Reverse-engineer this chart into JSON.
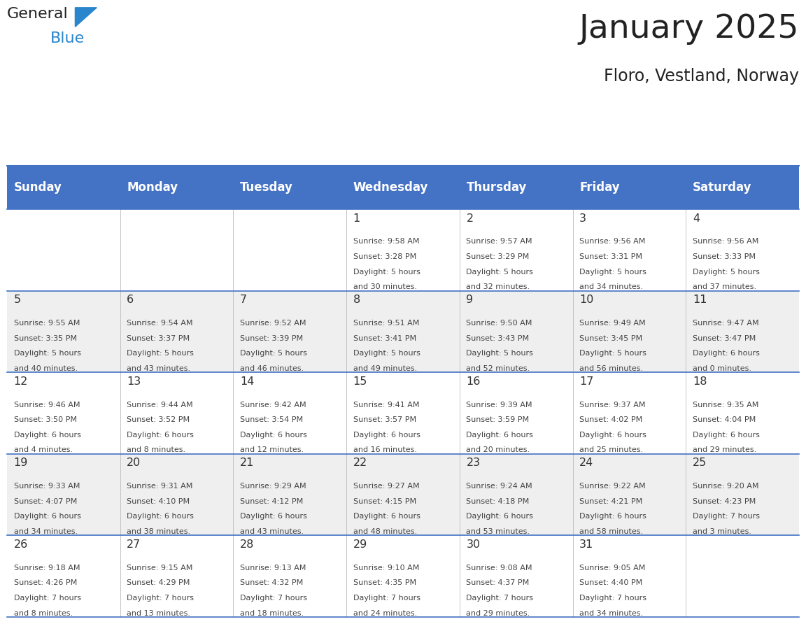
{
  "title": "January 2025",
  "subtitle": "Floro, Vestland, Norway",
  "days_of_week": [
    "Sunday",
    "Monday",
    "Tuesday",
    "Wednesday",
    "Thursday",
    "Friday",
    "Saturday"
  ],
  "header_bg": "#4472C4",
  "header_text": "#FFFFFF",
  "odd_row_bg": "#FFFFFF",
  "even_row_bg": "#EFEFEF",
  "line_color": "#4472C4",
  "day_number_color": "#333333",
  "cell_text_color": "#444444",
  "title_color": "#222222",
  "logo_text_color": "#222222",
  "logo_blue_color": "#2986CC",
  "calendar_data": [
    [
      null,
      null,
      null,
      {
        "day": 1,
        "sunrise": "9:58 AM",
        "sunset": "3:28 PM",
        "daylight": "5 hours\nand 30 minutes."
      },
      {
        "day": 2,
        "sunrise": "9:57 AM",
        "sunset": "3:29 PM",
        "daylight": "5 hours\nand 32 minutes."
      },
      {
        "day": 3,
        "sunrise": "9:56 AM",
        "sunset": "3:31 PM",
        "daylight": "5 hours\nand 34 minutes."
      },
      {
        "day": 4,
        "sunrise": "9:56 AM",
        "sunset": "3:33 PM",
        "daylight": "5 hours\nand 37 minutes."
      }
    ],
    [
      {
        "day": 5,
        "sunrise": "9:55 AM",
        "sunset": "3:35 PM",
        "daylight": "5 hours\nand 40 minutes."
      },
      {
        "day": 6,
        "sunrise": "9:54 AM",
        "sunset": "3:37 PM",
        "daylight": "5 hours\nand 43 minutes."
      },
      {
        "day": 7,
        "sunrise": "9:52 AM",
        "sunset": "3:39 PM",
        "daylight": "5 hours\nand 46 minutes."
      },
      {
        "day": 8,
        "sunrise": "9:51 AM",
        "sunset": "3:41 PM",
        "daylight": "5 hours\nand 49 minutes."
      },
      {
        "day": 9,
        "sunrise": "9:50 AM",
        "sunset": "3:43 PM",
        "daylight": "5 hours\nand 52 minutes."
      },
      {
        "day": 10,
        "sunrise": "9:49 AM",
        "sunset": "3:45 PM",
        "daylight": "5 hours\nand 56 minutes."
      },
      {
        "day": 11,
        "sunrise": "9:47 AM",
        "sunset": "3:47 PM",
        "daylight": "6 hours\nand 0 minutes."
      }
    ],
    [
      {
        "day": 12,
        "sunrise": "9:46 AM",
        "sunset": "3:50 PM",
        "daylight": "6 hours\nand 4 minutes."
      },
      {
        "day": 13,
        "sunrise": "9:44 AM",
        "sunset": "3:52 PM",
        "daylight": "6 hours\nand 8 minutes."
      },
      {
        "day": 14,
        "sunrise": "9:42 AM",
        "sunset": "3:54 PM",
        "daylight": "6 hours\nand 12 minutes."
      },
      {
        "day": 15,
        "sunrise": "9:41 AM",
        "sunset": "3:57 PM",
        "daylight": "6 hours\nand 16 minutes."
      },
      {
        "day": 16,
        "sunrise": "9:39 AM",
        "sunset": "3:59 PM",
        "daylight": "6 hours\nand 20 minutes."
      },
      {
        "day": 17,
        "sunrise": "9:37 AM",
        "sunset": "4:02 PM",
        "daylight": "6 hours\nand 25 minutes."
      },
      {
        "day": 18,
        "sunrise": "9:35 AM",
        "sunset": "4:04 PM",
        "daylight": "6 hours\nand 29 minutes."
      }
    ],
    [
      {
        "day": 19,
        "sunrise": "9:33 AM",
        "sunset": "4:07 PM",
        "daylight": "6 hours\nand 34 minutes."
      },
      {
        "day": 20,
        "sunrise": "9:31 AM",
        "sunset": "4:10 PM",
        "daylight": "6 hours\nand 38 minutes."
      },
      {
        "day": 21,
        "sunrise": "9:29 AM",
        "sunset": "4:12 PM",
        "daylight": "6 hours\nand 43 minutes."
      },
      {
        "day": 22,
        "sunrise": "9:27 AM",
        "sunset": "4:15 PM",
        "daylight": "6 hours\nand 48 minutes."
      },
      {
        "day": 23,
        "sunrise": "9:24 AM",
        "sunset": "4:18 PM",
        "daylight": "6 hours\nand 53 minutes."
      },
      {
        "day": 24,
        "sunrise": "9:22 AM",
        "sunset": "4:21 PM",
        "daylight": "6 hours\nand 58 minutes."
      },
      {
        "day": 25,
        "sunrise": "9:20 AM",
        "sunset": "4:23 PM",
        "daylight": "7 hours\nand 3 minutes."
      }
    ],
    [
      {
        "day": 26,
        "sunrise": "9:18 AM",
        "sunset": "4:26 PM",
        "daylight": "7 hours\nand 8 minutes."
      },
      {
        "day": 27,
        "sunrise": "9:15 AM",
        "sunset": "4:29 PM",
        "daylight": "7 hours\nand 13 minutes."
      },
      {
        "day": 28,
        "sunrise": "9:13 AM",
        "sunset": "4:32 PM",
        "daylight": "7 hours\nand 18 minutes."
      },
      {
        "day": 29,
        "sunrise": "9:10 AM",
        "sunset": "4:35 PM",
        "daylight": "7 hours\nand 24 minutes."
      },
      {
        "day": 30,
        "sunrise": "9:08 AM",
        "sunset": "4:37 PM",
        "daylight": "7 hours\nand 29 minutes."
      },
      {
        "day": 31,
        "sunrise": "9:05 AM",
        "sunset": "4:40 PM",
        "daylight": "7 hours\nand 34 minutes."
      },
      null
    ]
  ]
}
